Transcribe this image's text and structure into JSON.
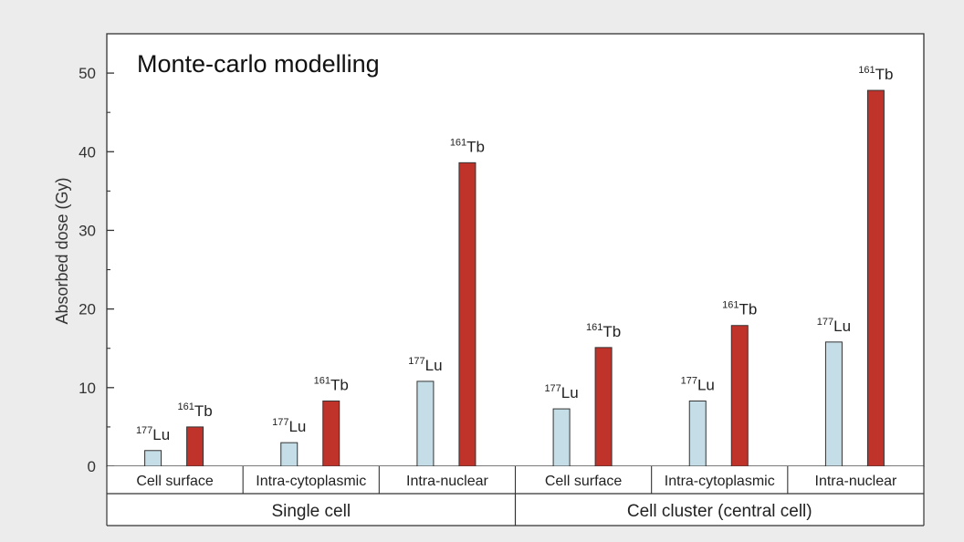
{
  "chart_data": {
    "type": "bar",
    "title": "Monte-carlo modelling",
    "ylabel": "Absorbed dose (Gy)",
    "ylim": [
      0,
      55
    ],
    "yticks": [
      0,
      10,
      20,
      30,
      40,
      50
    ],
    "groups": [
      {
        "label": "Single cell",
        "categories": [
          "Cell surface",
          "Intra-cytoplasmic",
          "Intra-nuclear"
        ]
      },
      {
        "label": "Cell cluster (central cell)",
        "categories": [
          "Cell surface",
          "Intra-cytoplasmic",
          "Intra-nuclear"
        ]
      }
    ],
    "series": [
      {
        "name": "Lu",
        "mass": "177",
        "color": "#c4dde6",
        "values": [
          2.0,
          3.0,
          10.8,
          7.3,
          8.3,
          15.8
        ]
      },
      {
        "name": "Tb",
        "mass": "161",
        "color": "#c0332b",
        "values": [
          5.0,
          8.3,
          38.6,
          15.1,
          17.9,
          47.8
        ]
      }
    ],
    "grid": false,
    "legend": "none"
  }
}
